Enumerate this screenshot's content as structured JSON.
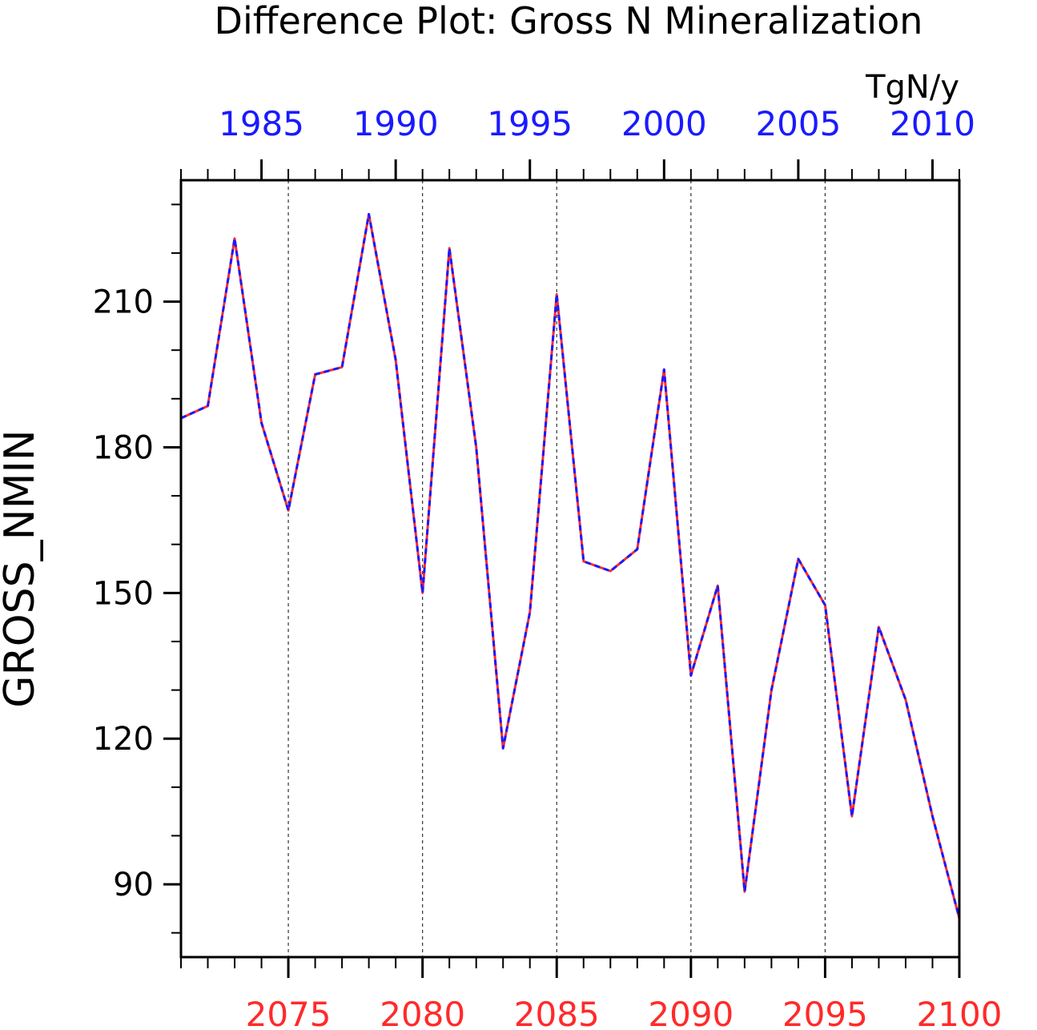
{
  "chart_data": {
    "type": "line",
    "title": "Difference Plot: Gross N Mineralization",
    "units": "TgN/y",
    "ylabel": "GROSS_NMIN",
    "ylim": [
      75,
      235
    ],
    "y_ticks": [
      90,
      120,
      150,
      180,
      210
    ],
    "y_tick_labels": [
      "90",
      "120",
      "150",
      "180",
      "210"
    ],
    "bottom_axis": {
      "color": "#ff2a2a",
      "range": [
        2071,
        2100
      ],
      "ticks": [
        2075,
        2080,
        2085,
        2090,
        2095,
        2100
      ],
      "tick_labels": [
        "2075",
        "2080",
        "2085",
        "2090",
        "2095",
        "2100"
      ]
    },
    "top_axis": {
      "color": "#1a1aff",
      "range": [
        1982,
        2011
      ],
      "ticks": [
        1985,
        1990,
        1995,
        2000,
        2005,
        2010
      ],
      "tick_labels": [
        "1985",
        "1990",
        "1995",
        "2000",
        "2005",
        "2010"
      ]
    },
    "grid": "vertical dashed at labeled bottom ticks",
    "x": [
      2071,
      2072,
      2073,
      2074,
      2075,
      2076,
      2077,
      2078,
      2079,
      2080,
      2081,
      2082,
      2083,
      2084,
      2085,
      2086,
      2087,
      2088,
      2089,
      2090,
      2091,
      2092,
      2093,
      2094,
      2095,
      2096,
      2097,
      2098,
      2099,
      2100
    ],
    "series": [
      {
        "color": "#ff2a2a",
        "style": "solid",
        "values": [
          186,
          188.5,
          223,
          185,
          167,
          195,
          196.5,
          228,
          198,
          150,
          221,
          180,
          118,
          146,
          211.5,
          156.5,
          154.5,
          159,
          196,
          133,
          151.5,
          88.5,
          130,
          157,
          147.5,
          104,
          143,
          128,
          104,
          83
        ]
      },
      {
        "color": "#1a1aff",
        "style": "dashed",
        "values": [
          186,
          188.5,
          223,
          185,
          167,
          195,
          196.5,
          228,
          198,
          150,
          221,
          180,
          118,
          146,
          211.5,
          156.5,
          154.5,
          159,
          196,
          133,
          151.5,
          88.5,
          130,
          157,
          147.5,
          104,
          143,
          128,
          104,
          83
        ]
      }
    ]
  }
}
